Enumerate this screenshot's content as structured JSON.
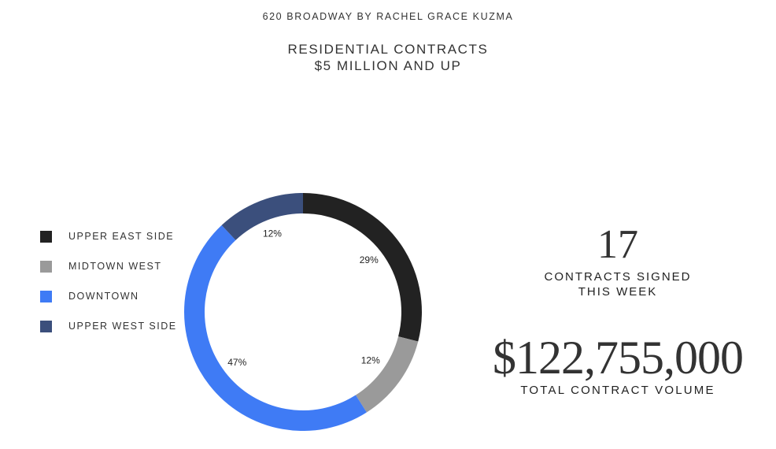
{
  "header": {
    "source": "620 BROADWAY BY RACHEL GRACE KUZMA",
    "title_line1": "RESIDENTIAL CONTRACTS",
    "title_line2": "$5 MILLION AND UP"
  },
  "chart_data": {
    "type": "pie",
    "variant": "donut",
    "title": "RESIDENTIAL CONTRACTS $5 MILLION AND UP",
    "legend_position": "left",
    "slices": [
      {
        "label": "UPPER EAST SIDE",
        "value": 29,
        "display": "29%",
        "color": "#222222"
      },
      {
        "label": "MIDTOWN WEST",
        "value": 12,
        "display": "12%",
        "color": "#9a9a9a"
      },
      {
        "label": "DOWNTOWN",
        "value": 47,
        "display": "47%",
        "color": "#3f7bf5"
      },
      {
        "label": "UPPER WEST SIDE",
        "value": 12,
        "display": "12%",
        "color": "#3b4f7c"
      }
    ]
  },
  "stats": {
    "contracts_count": "17",
    "contracts_caption_line1": "CONTRACTS SIGNED",
    "contracts_caption_line2": "THIS WEEK",
    "total_volume": "$122,755,000",
    "volume_caption": "TOTAL CONTRACT VOLUME"
  }
}
